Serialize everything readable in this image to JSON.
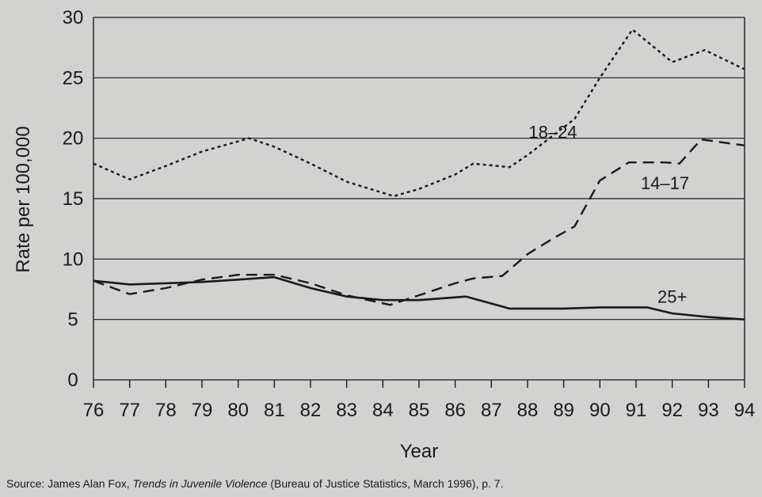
{
  "chart_data": {
    "type": "line",
    "xlabel": "Year",
    "ylabel": "Rate per 100,000",
    "xlim": [
      76,
      94
    ],
    "ylim": [
      0,
      30
    ],
    "x_ticks": [
      "76",
      "77",
      "78",
      "79",
      "80",
      "81",
      "82",
      "83",
      "84",
      "85",
      "86",
      "87",
      "88",
      "89",
      "90",
      "91",
      "92",
      "93",
      "94"
    ],
    "y_ticks": [
      "0",
      "5",
      "10",
      "15",
      "20",
      "25",
      "30"
    ],
    "grid": "horizontal",
    "series": [
      {
        "name": "18–24",
        "style": "dotted",
        "points": [
          [
            76,
            17.9
          ],
          [
            77,
            16.6
          ],
          [
            78,
            17.7
          ],
          [
            79,
            18.9
          ],
          [
            80.3,
            20.0
          ],
          [
            81,
            19.3
          ],
          [
            82,
            17.9
          ],
          [
            83,
            16.4
          ],
          [
            84.3,
            15.2
          ],
          [
            85,
            15.8
          ],
          [
            86,
            17.0
          ],
          [
            86.5,
            17.9
          ],
          [
            87.5,
            17.6
          ],
          [
            88,
            18.6
          ],
          [
            89.3,
            21.6
          ],
          [
            90,
            25.0
          ],
          [
            90.9,
            29.0
          ],
          [
            92,
            26.3
          ],
          [
            92.9,
            27.3
          ],
          [
            94,
            25.7
          ]
        ],
        "label_pos": [
          88.7,
          20.0
        ]
      },
      {
        "name": "14–17",
        "style": "dashed",
        "points": [
          [
            76,
            8.2
          ],
          [
            77,
            7.1
          ],
          [
            78,
            7.6
          ],
          [
            79,
            8.3
          ],
          [
            80,
            8.7
          ],
          [
            81,
            8.7
          ],
          [
            82,
            8.0
          ],
          [
            83,
            7.0
          ],
          [
            84.2,
            6.2
          ],
          [
            85,
            7.0
          ],
          [
            86,
            8.0
          ],
          [
            86.5,
            8.4
          ],
          [
            87.3,
            8.6
          ],
          [
            88,
            10.4
          ],
          [
            88.7,
            11.7
          ],
          [
            89.3,
            12.7
          ],
          [
            90,
            16.5
          ],
          [
            90.8,
            18.0
          ],
          [
            91.8,
            18.0
          ],
          [
            92.2,
            17.9
          ],
          [
            92.8,
            19.9
          ],
          [
            94,
            19.4
          ]
        ],
        "label_pos": [
          91.8,
          15.8
        ]
      },
      {
        "name": "25+",
        "style": "solid",
        "points": [
          [
            76,
            8.2
          ],
          [
            77,
            7.9
          ],
          [
            78,
            8.0
          ],
          [
            79,
            8.1
          ],
          [
            80,
            8.3
          ],
          [
            81,
            8.5
          ],
          [
            82,
            7.6
          ],
          [
            83,
            6.9
          ],
          [
            84,
            6.6
          ],
          [
            85,
            6.6
          ],
          [
            86.3,
            6.9
          ],
          [
            87.5,
            5.9
          ],
          [
            88,
            5.9
          ],
          [
            89,
            5.9
          ],
          [
            90,
            6.0
          ],
          [
            91.3,
            6.0
          ],
          [
            92,
            5.5
          ],
          [
            93,
            5.2
          ],
          [
            94,
            5.0
          ]
        ],
        "label_pos": [
          92.0,
          6.4
        ]
      }
    ]
  },
  "source": {
    "prefix": "Source: James Alan Fox, ",
    "title": "Trends in Juvenile Violence",
    "suffix": " (Bureau of Justice Statistics, March 1996), p. 7."
  }
}
